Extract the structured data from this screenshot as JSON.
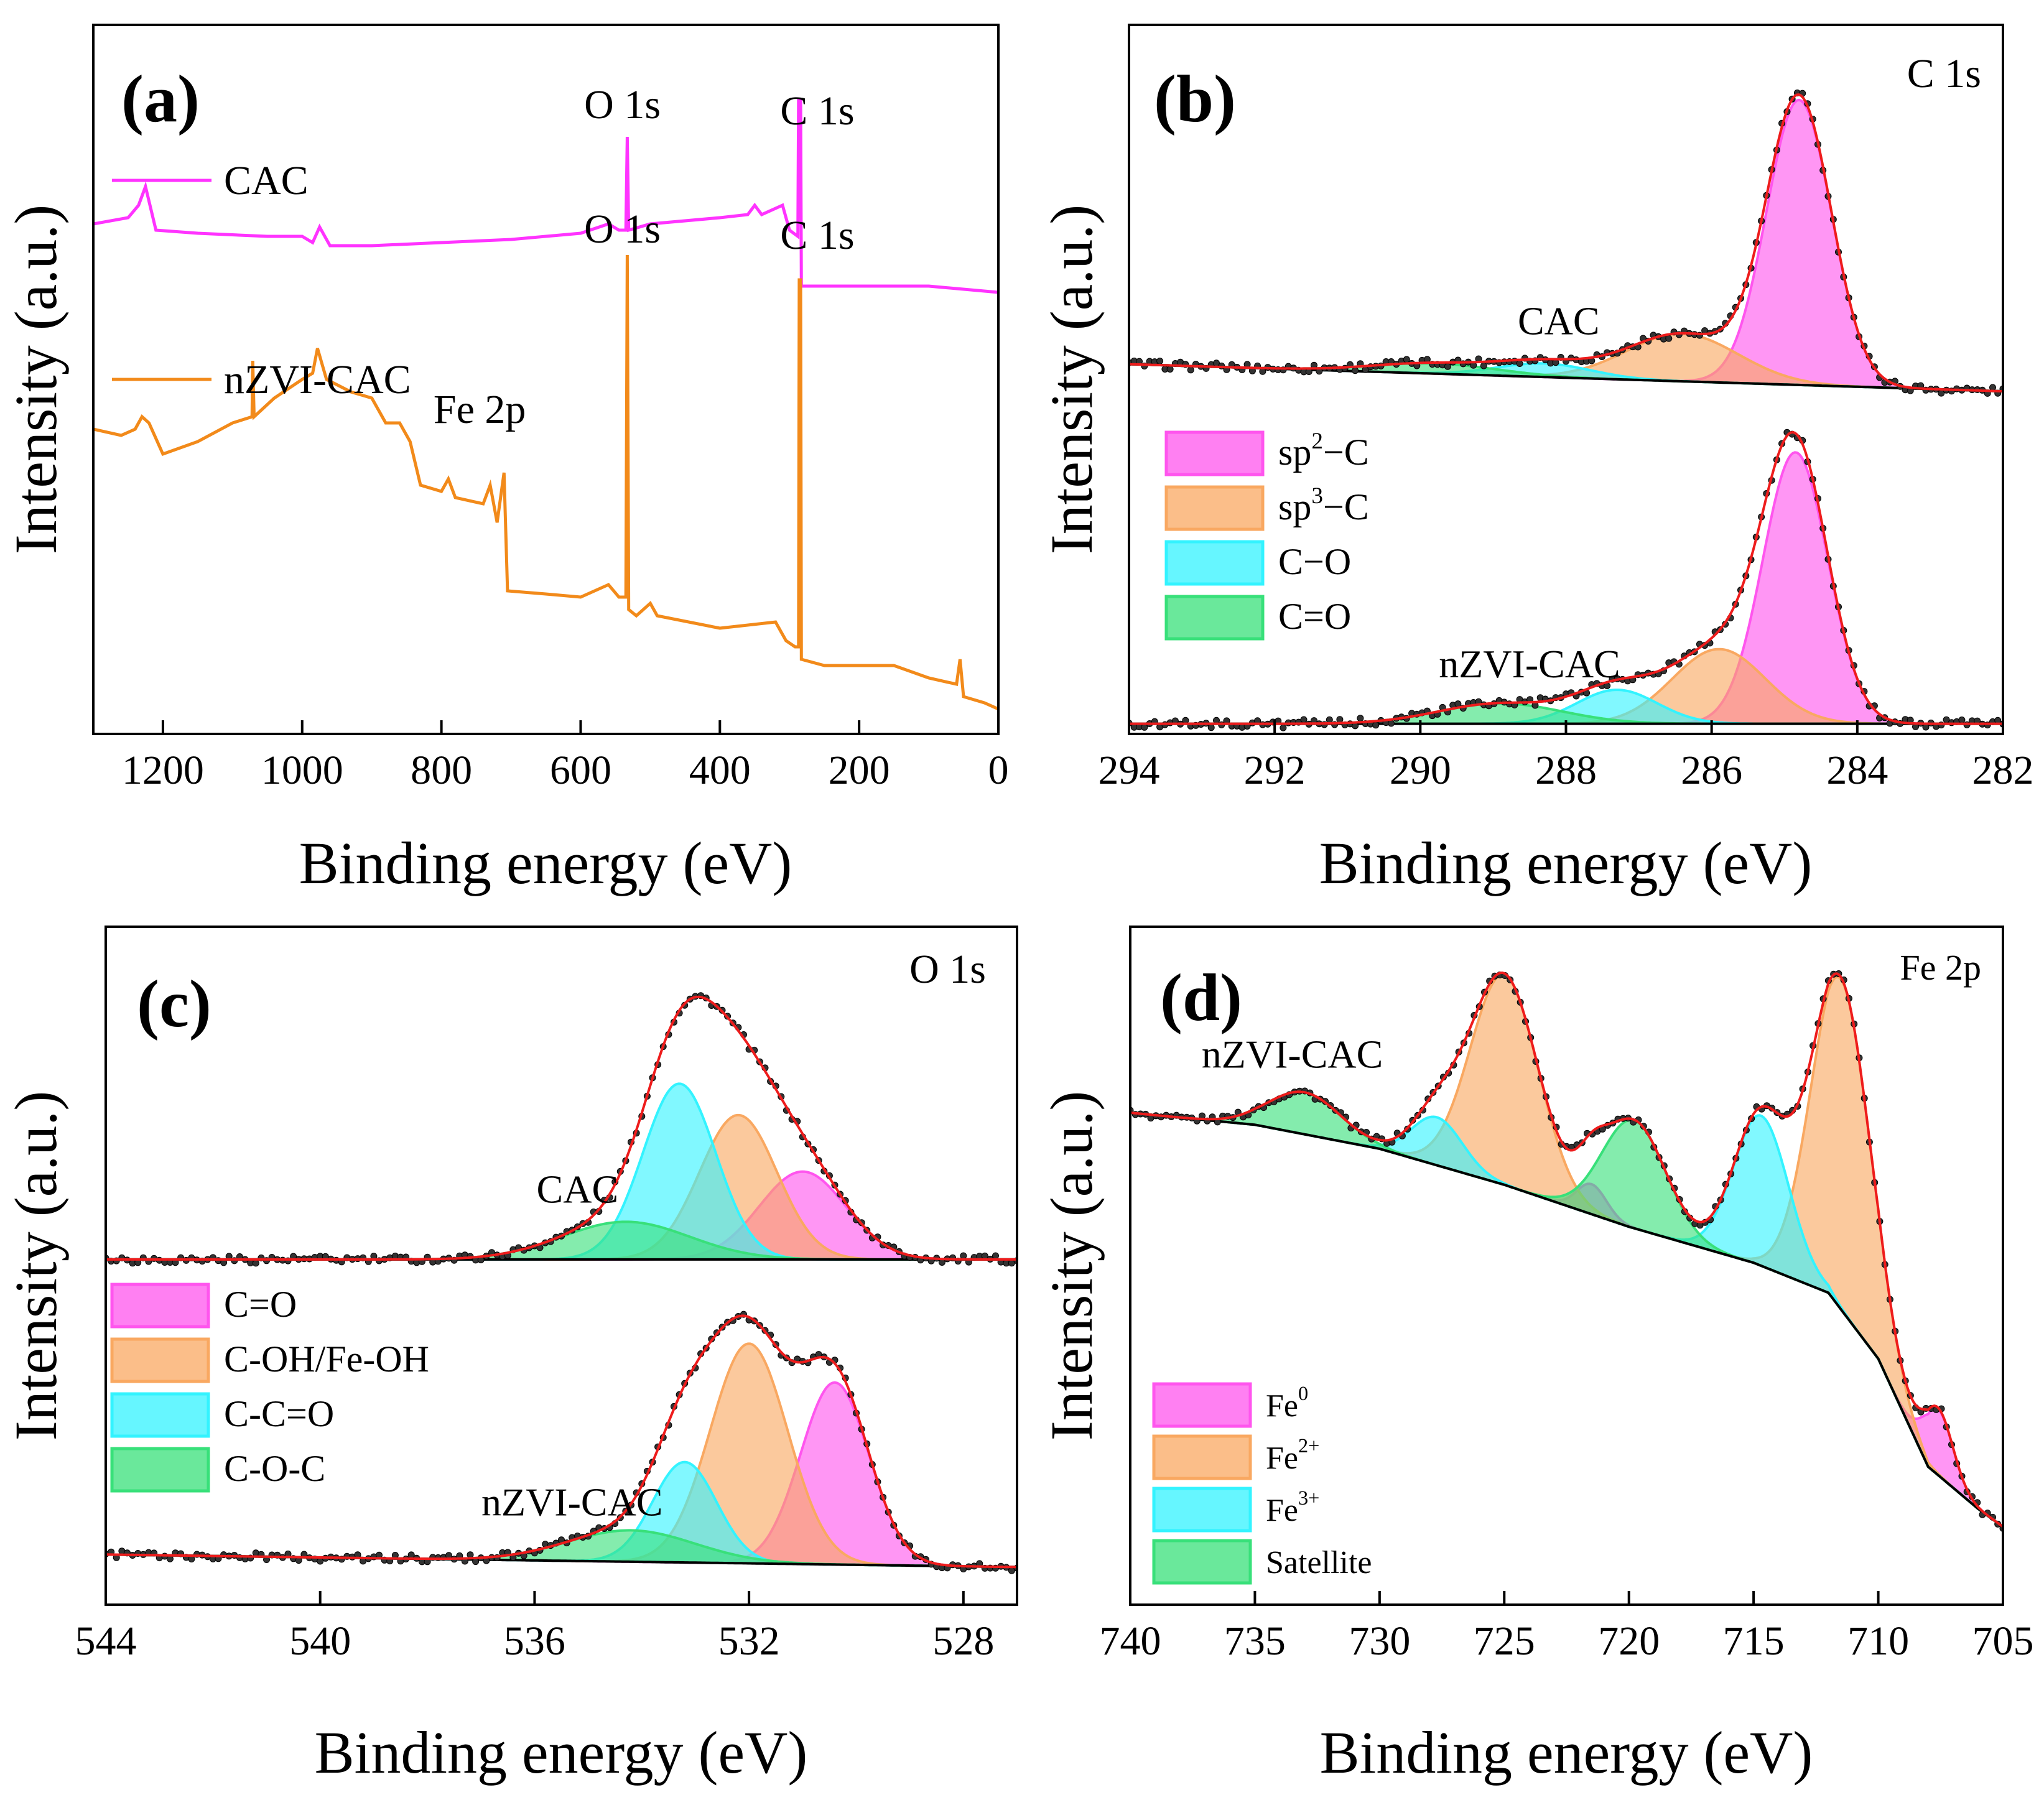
{
  "figure": {
    "panels": [
      "(a)",
      "(b)",
      "(c)",
      "(d)"
    ]
  },
  "chart_data": [
    {
      "id": "a",
      "type": "line",
      "panel_label": "(a)",
      "xlabel": "Binding energy (eV)",
      "ylabel": "Intensity (a.u.)",
      "xlim": [
        1300,
        0
      ],
      "xticks": [
        "1200",
        "1000",
        "800",
        "600",
        "400",
        "200",
        "0"
      ],
      "series": [
        {
          "name": "CAC",
          "color": "#ff33ff",
          "points": [
            [
              1300,
              0.8
            ],
            [
              1250,
              0.81
            ],
            [
              1235,
              0.83
            ],
            [
              1225,
              0.86
            ],
            [
              1210,
              0.79
            ],
            [
              1150,
              0.785
            ],
            [
              1050,
              0.78
            ],
            [
              1000,
              0.78
            ],
            [
              985,
              0.77
            ],
            [
              975,
              0.795
            ],
            [
              960,
              0.765
            ],
            [
              900,
              0.765
            ],
            [
              800,
              0.77
            ],
            [
              700,
              0.775
            ],
            [
              600,
              0.785
            ],
            [
              560,
              0.8
            ],
            [
              545,
              0.79
            ],
            [
              535,
              0.79
            ],
            [
              533,
              0.94
            ],
            [
              531,
              0.79
            ],
            [
              500,
              0.8
            ],
            [
              400,
              0.81
            ],
            [
              360,
              0.815
            ],
            [
              350,
              0.83
            ],
            [
              340,
              0.815
            ],
            [
              310,
              0.83
            ],
            [
              300,
              0.79
            ],
            [
              288,
              0.78
            ],
            [
              287,
              1.0
            ],
            [
              284,
              1.0
            ],
            [
              283,
              0.7
            ],
            [
              250,
              0.7
            ],
            [
              100,
              0.7
            ],
            [
              0,
              0.69
            ]
          ]
        },
        {
          "name": "nZVI-CAC",
          "color": "#f28a1a",
          "points": [
            [
              1300,
              0.47
            ],
            [
              1260,
              0.46
            ],
            [
              1240,
              0.47
            ],
            [
              1230,
              0.49
            ],
            [
              1220,
              0.48
            ],
            [
              1200,
              0.43
            ],
            [
              1150,
              0.45
            ],
            [
              1100,
              0.48
            ],
            [
              1072,
              0.49
            ],
            [
              1071,
              0.58
            ],
            [
              1069,
              0.49
            ],
            [
              1040,
              0.52
            ],
            [
              1000,
              0.55
            ],
            [
              985,
              0.56
            ],
            [
              978,
              0.6
            ],
            [
              965,
              0.55
            ],
            [
              930,
              0.53
            ],
            [
              900,
              0.52
            ],
            [
              880,
              0.48
            ],
            [
              860,
              0.48
            ],
            [
              845,
              0.45
            ],
            [
              830,
              0.38
            ],
            [
              800,
              0.37
            ],
            [
              790,
              0.39
            ],
            [
              780,
              0.36
            ],
            [
              740,
              0.35
            ],
            [
              730,
              0.38
            ],
            [
              720,
              0.32
            ],
            [
              710,
              0.4
            ],
            [
              705,
              0.21
            ],
            [
              650,
              0.205
            ],
            [
              600,
              0.2
            ],
            [
              560,
              0.22
            ],
            [
              545,
              0.2
            ],
            [
              535,
              0.2
            ],
            [
              533,
              0.75
            ],
            [
              531,
              0.18
            ],
            [
              520,
              0.17
            ],
            [
              510,
              0.18
            ],
            [
              500,
              0.19
            ],
            [
              490,
              0.17
            ],
            [
              400,
              0.15
            ],
            [
              320,
              0.16
            ],
            [
              305,
              0.13
            ],
            [
              292,
              0.12
            ],
            [
              287,
              0.12
            ],
            [
              286,
              0.71
            ],
            [
              284,
              0.71
            ],
            [
              283,
              0.1
            ],
            [
              250,
              0.09
            ],
            [
              150,
              0.09
            ],
            [
              100,
              0.07
            ],
            [
              60,
              0.06
            ],
            [
              55,
              0.1
            ],
            [
              50,
              0.04
            ],
            [
              20,
              0.03
            ],
            [
              0,
              0.02
            ]
          ]
        }
      ],
      "annotations": [
        {
          "text": "C 1s",
          "x": 260,
          "y": 0.96
        },
        {
          "text": "O 1s",
          "x": 540,
          "y": 0.97
        },
        {
          "text": "O 1s",
          "x": 540,
          "y": 0.77
        },
        {
          "text": "C 1s",
          "x": 260,
          "y": 0.76
        },
        {
          "text": "Fe 2p",
          "x": 745,
          "y": 0.48
        }
      ],
      "legend": [
        {
          "label": "CAC",
          "color": "#ff33ff"
        },
        {
          "label": "nZVI-CAC",
          "color": "#f28a1a"
        }
      ]
    },
    {
      "id": "b",
      "type": "area",
      "panel_label": "(b)",
      "corner_label": "C 1s",
      "xlabel": "Binding energy (eV)",
      "ylabel": "Intensity (a.u.)",
      "xlim": [
        294,
        282
      ],
      "xticks": [
        "294",
        "292",
        "290",
        "288",
        "286",
        "284",
        "282"
      ],
      "components": [
        {
          "name": "sp2−C",
          "label_base": "sp",
          "label_sup": "2",
          "label_tail": "−C",
          "color": "#ff55ee"
        },
        {
          "name": "sp3−C",
          "label_base": "sp",
          "label_sup": "3",
          "label_tail": "−C",
          "color": "#f9a861"
        },
        {
          "name": "C−O",
          "label_base": "C−O",
          "label_sup": "",
          "label_tail": "",
          "color": "#33f3ff"
        },
        {
          "name": "C=O",
          "label_base": "C=O",
          "label_sup": "",
          "label_tail": "",
          "color": "#38e07a"
        }
      ],
      "spectra": [
        {
          "name": "CAC",
          "label": "CAC",
          "label_x": 288.1,
          "offset": 0.49,
          "bg_start": 0.04,
          "bg_end": 0.0,
          "peaks": [
            {
              "component": "sp2−C",
              "center": 284.8,
              "height": 0.42,
              "fwhm": 1.05
            },
            {
              "component": "sp3−C",
              "center": 286.4,
              "height": 0.07,
              "fwhm": 1.8
            },
            {
              "component": "C−O",
              "center": 288.3,
              "height": 0.02,
              "fwhm": 1.5
            },
            {
              "component": "C=O",
              "center": 289.8,
              "height": 0.015,
              "fwhm": 2.0
            }
          ]
        },
        {
          "name": "nZVI-CAC",
          "label": "nZVI-CAC",
          "label_x": 288.5,
          "offset": 0.0,
          "bg_start": 0.0,
          "bg_end": 0.0,
          "peaks": [
            {
              "component": "sp2−C",
              "center": 284.85,
              "height": 0.4,
              "fwhm": 1.05
            },
            {
              "component": "sp3−C",
              "center": 285.9,
              "height": 0.11,
              "fwhm": 1.5
            },
            {
              "component": "C−O",
              "center": 287.3,
              "height": 0.05,
              "fwhm": 1.3
            },
            {
              "component": "C=O",
              "center": 288.9,
              "height": 0.03,
              "fwhm": 2.0
            }
          ]
        }
      ]
    },
    {
      "id": "c",
      "type": "area",
      "panel_label": "(c)",
      "corner_label": "O 1s",
      "xlabel": "Binding energy (eV)",
      "ylabel": "Intensity (a.u.)",
      "xlim": [
        544,
        527
      ],
      "xticks": [
        "544",
        "540",
        "536",
        "532",
        "528"
      ],
      "components": [
        {
          "name": "C=O",
          "label_base": "C=O",
          "label_sup": "",
          "label_tail": "",
          "color": "#ff55ee"
        },
        {
          "name": "C-OH/Fe-OH",
          "label_base": "C-OH/Fe-OH",
          "label_sup": "",
          "label_tail": "",
          "color": "#f9a861"
        },
        {
          "name": "C-C=O",
          "label_base": "C-C=O",
          "label_sup": "",
          "label_tail": "",
          "color": "#33f3ff"
        },
        {
          "name": "C-O-C",
          "label_base": "C-O-C",
          "label_sup": "",
          "label_tail": "",
          "color": "#38e07a"
        }
      ],
      "spectra": [
        {
          "name": "CAC",
          "label": "CAC",
          "label_x": 535.2,
          "offset": 0.47,
          "bg_start": 0.0,
          "bg_end": 0.0,
          "peaks": [
            {
              "component": "C=O",
              "center": 531.0,
              "height": 0.14,
              "fwhm": 1.9
            },
            {
              "component": "C-OH/Fe-OH",
              "center": 532.2,
              "height": 0.23,
              "fwhm": 1.7
            },
            {
              "component": "C-C=O",
              "center": 533.3,
              "height": 0.28,
              "fwhm": 1.6
            },
            {
              "component": "C-O-C",
              "center": 534.3,
              "height": 0.06,
              "fwhm": 2.8
            }
          ]
        },
        {
          "name": "nZVI-CAC",
          "label": "nZVI-CAC",
          "label_x": 535.3,
          "offset": 0.0,
          "bg_start": 0.0,
          "bg_end": -0.02,
          "peaks": [
            {
              "component": "C=O",
              "center": 530.4,
              "height": 0.29,
              "fwhm": 1.5
            },
            {
              "component": "C-OH/Fe-OH",
              "center": 532.0,
              "height": 0.35,
              "fwhm": 1.7
            },
            {
              "component": "C-C=O",
              "center": 533.2,
              "height": 0.16,
              "fwhm": 1.4
            },
            {
              "component": "C-O-C",
              "center": 534.2,
              "height": 0.05,
              "fwhm": 2.8
            }
          ]
        }
      ]
    },
    {
      "id": "d",
      "type": "area",
      "panel_label": "(d)",
      "corner_label": "Fe 2p",
      "xlabel": "Binding energy (eV)",
      "ylabel": "Intensity (a.u.)",
      "xlim": [
        740,
        705
      ],
      "xticks": [
        "740",
        "735",
        "730",
        "725",
        "720",
        "715",
        "710",
        "705"
      ],
      "components": [
        {
          "name": "Fe0",
          "label_base": "Fe",
          "label_sup": "0",
          "label_tail": "",
          "color": "#ff55ee"
        },
        {
          "name": "Fe2+",
          "label_base": "Fe",
          "label_sup": "2+",
          "label_tail": "",
          "color": "#f9a861"
        },
        {
          "name": "Fe3+",
          "label_base": "Fe",
          "label_sup": "3+",
          "label_tail": "",
          "color": "#33f3ff"
        },
        {
          "name": "Satellite",
          "label_base": "Satellite",
          "label_sup": "",
          "label_tail": "",
          "color": "#38e07a"
        }
      ],
      "spectra": [
        {
          "name": "nZVI-CAC",
          "label": "nZVI-CAC",
          "label_x": 733.5,
          "offset": 0.0,
          "background": [
            [
              740,
              0.69
            ],
            [
              735,
              0.67
            ],
            [
              730,
              0.63
            ],
            [
              725,
              0.57
            ],
            [
              720,
              0.5
            ],
            [
              715,
              0.44
            ],
            [
              712,
              0.39
            ],
            [
              710,
              0.28
            ],
            [
              708,
              0.1
            ],
            [
              706,
              0.03
            ],
            [
              705,
              0.0
            ]
          ],
          "peaks": [
            {
              "component": "Fe0",
              "center": 707.6,
              "height": 0.11,
              "fwhm": 1.4
            },
            {
              "component": "Fe0",
              "center": 721.5,
              "height": 0.05,
              "fwhm": 1.4
            },
            {
              "component": "Fe2+",
              "center": 711.5,
              "height": 0.55,
              "fwhm": 2.8
            },
            {
              "component": "Fe2+",
              "center": 725.0,
              "height": 0.35,
              "fwhm": 3.2
            },
            {
              "component": "Fe3+",
              "center": 714.7,
              "height": 0.25,
              "fwhm": 2.6
            },
            {
              "component": "Fe3+",
              "center": 727.7,
              "height": 0.08,
              "fwhm": 2.4
            },
            {
              "component": "Satellite",
              "center": 719.8,
              "height": 0.18,
              "fwhm": 3.0
            },
            {
              "component": "Satellite",
              "center": 733.0,
              "height": 0.07,
              "fwhm": 3.4
            }
          ]
        }
      ]
    }
  ]
}
